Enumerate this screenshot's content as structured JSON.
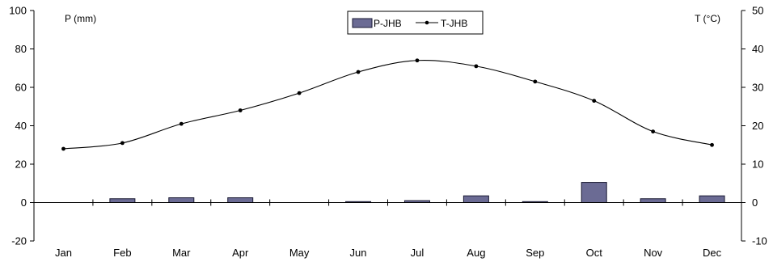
{
  "chart_data": {
    "type": "bar+line",
    "categories": [
      "Jan",
      "Feb",
      "Mar",
      "Apr",
      "May",
      "Jun",
      "Jul",
      "Aug",
      "Sep",
      "Oct",
      "Nov",
      "Dec"
    ],
    "series": [
      {
        "name": "P-JHB",
        "type": "bar",
        "axis": "left",
        "values": [
          0,
          2,
          2.5,
          2.5,
          0,
          0.5,
          1,
          3.5,
          0.5,
          10.5,
          2,
          3.5
        ]
      },
      {
        "name": "T-JHB",
        "type": "line",
        "axis": "right",
        "values": [
          14,
          15.5,
          20.5,
          24,
          28.5,
          34,
          37,
          35.5,
          31.5,
          26.5,
          18.5,
          15
        ]
      }
    ],
    "left_axis": {
      "label": "P (mm)",
      "range": [
        -20,
        100
      ],
      "ticks": [
        "100",
        "80",
        "60",
        "40",
        "20",
        "0",
        "-20"
      ]
    },
    "right_axis": {
      "label": "T (°C)",
      "range": [
        -10,
        50
      ],
      "ticks": [
        "50",
        "40",
        "30",
        "20",
        "10",
        "0",
        "-10"
      ]
    },
    "legend_position": "top-center",
    "grid": false,
    "colors": {
      "bar_fill": "#6b6b94",
      "bar_stroke": "#1a1a33",
      "line": "#000000"
    }
  }
}
